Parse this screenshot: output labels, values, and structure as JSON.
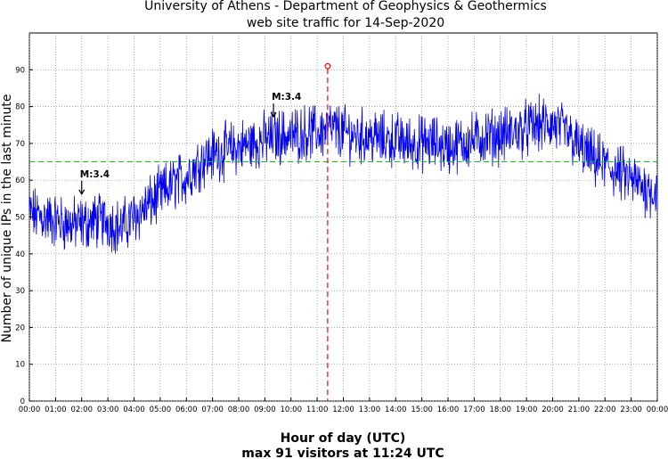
{
  "chart_data": {
    "type": "line",
    "title": "University of Athens - Department of Geophysics & Geothermics",
    "subtitle": "web site traffic for 14-Sep-2020",
    "xlabel": "Hour of day (UTC)",
    "ylabel": "Number of unique IPs in the last minute",
    "footer": "max 91 visitors at 11:24 UTC",
    "xlim": [
      0,
      24
    ],
    "ylim": [
      0,
      100
    ],
    "x_ticks": [
      "00:00",
      "01:00",
      "02:00",
      "03:00",
      "04:00",
      "05:00",
      "06:00",
      "07:00",
      "08:00",
      "09:00",
      "10:00",
      "11:00",
      "12:00",
      "13:00",
      "14:00",
      "15:00",
      "16:00",
      "17:00",
      "18:00",
      "19:00",
      "20:00",
      "21:00",
      "22:00",
      "23:00",
      "00:00"
    ],
    "y_ticks": [
      0,
      10,
      20,
      30,
      40,
      50,
      60,
      70,
      80,
      90
    ],
    "grid": true,
    "mean_line": {
      "value": 65,
      "color": "#00cc00"
    },
    "peak": {
      "hour": 11.4,
      "value": 91,
      "color": "#ff0000"
    },
    "annotations": [
      {
        "label": "M:3.4",
        "hour": 2.0,
        "value": 55
      },
      {
        "label": "M:3.4",
        "hour": 9.33,
        "value": 76
      }
    ],
    "series": [
      {
        "name": "unique IPs",
        "color": "#0000ee",
        "x": [
          0,
          0.5,
          1,
          1.5,
          2,
          2.5,
          3,
          3.5,
          4,
          4.5,
          5,
          5.5,
          6,
          6.5,
          7,
          7.5,
          8,
          8.5,
          9,
          9.5,
          10,
          10.5,
          11,
          11.5,
          12,
          12.5,
          13,
          13.5,
          14,
          14.5,
          15,
          15.5,
          16,
          16.5,
          17,
          17.5,
          18,
          18.5,
          19,
          19.5,
          20,
          20.5,
          21,
          21.5,
          22,
          22.5,
          23,
          23.5,
          24
        ],
        "values": [
          51,
          50,
          49,
          48,
          48,
          49,
          49,
          47,
          50,
          53,
          56,
          59,
          61,
          65,
          67,
          68,
          69,
          70,
          71,
          72,
          72,
          73,
          73,
          74,
          73,
          72,
          72,
          71,
          71,
          70,
          70,
          70,
          69,
          70,
          71,
          72,
          72,
          73,
          74,
          75,
          75,
          73,
          69,
          66,
          64,
          62,
          60,
          58,
          57
        ]
      }
    ]
  }
}
